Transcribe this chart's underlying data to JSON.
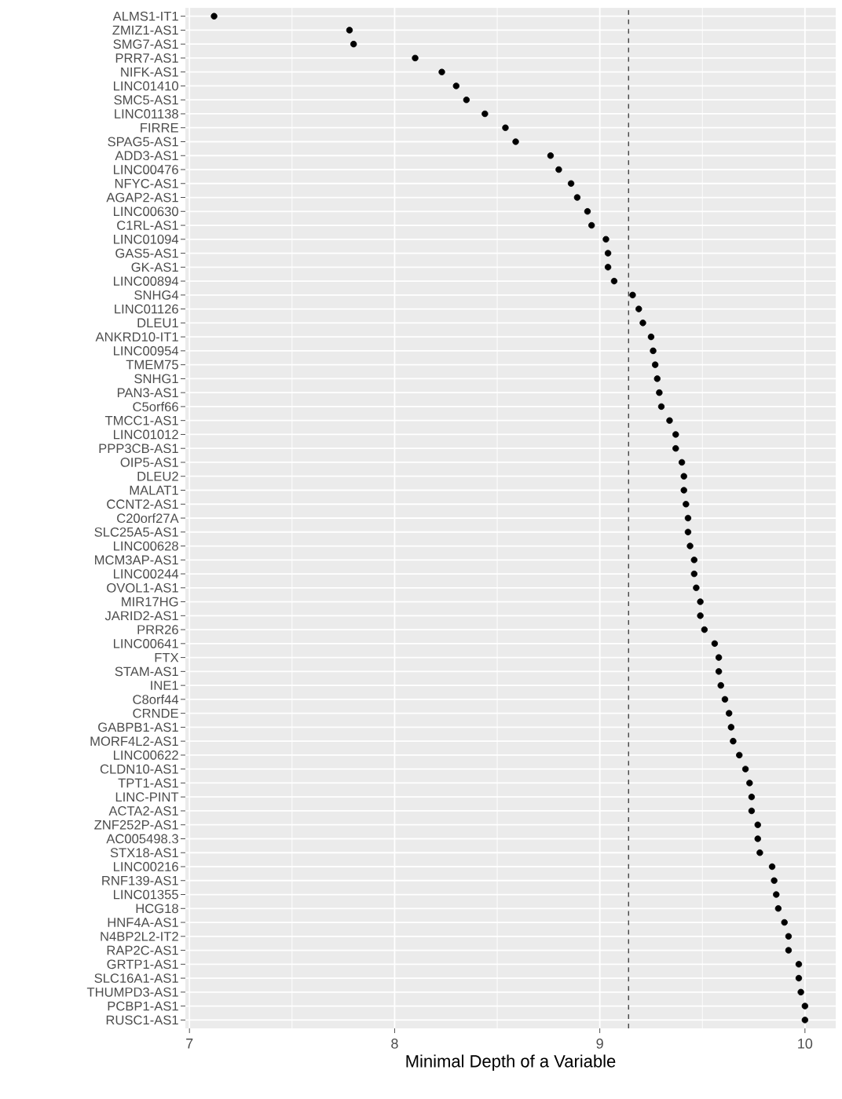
{
  "chart_data": {
    "type": "scatter",
    "orientation": "horizontal",
    "xlabel": "Minimal Depth of a Variable",
    "categories": [
      "ALMS1-IT1",
      "ZMIZ1-AS1",
      "SMG7-AS1",
      "PRR7-AS1",
      "NIFK-AS1",
      "LINC01410",
      "SMC5-AS1",
      "LINC01138",
      "FIRRE",
      "SPAG5-AS1",
      "ADD3-AS1",
      "LINC00476",
      "NFYC-AS1",
      "AGAP2-AS1",
      "LINC00630",
      "C1RL-AS1",
      "LINC01094",
      "GAS5-AS1",
      "GK-AS1",
      "LINC00894",
      "SNHG4",
      "LINC01126",
      "DLEU1",
      "ANKRD10-IT1",
      "LINC00954",
      "TMEM75",
      "SNHG1",
      "PAN3-AS1",
      "C5orf66",
      "TMCC1-AS1",
      "LINC01012",
      "PPP3CB-AS1",
      "OIP5-AS1",
      "DLEU2",
      "MALAT1",
      "CCNT2-AS1",
      "C20orf27A",
      "SLC25A5-AS1",
      "LINC00628",
      "MCM3AP-AS1",
      "LINC00244",
      "OVOL1-AS1",
      "MIR17HG",
      "JARID2-AS1",
      "PRR26",
      "LINC00641",
      "FTX",
      "STAM-AS1",
      "INE1",
      "C8orf44",
      "CRNDE",
      "GABPB1-AS1",
      "MORF4L2-AS1",
      "LINC00622",
      "CLDN10-AS1",
      "TPT1-AS1",
      "LINC-PINT",
      "ACTA2-AS1",
      "ZNF252P-AS1",
      "AC005498.3",
      "STX18-AS1",
      "LINC00216",
      "RNF139-AS1",
      "LINC01355",
      "HCG18",
      "HNF4A-AS1",
      "N4BP2L2-IT2",
      "RAP2C-AS1",
      "GRTP1-AS1",
      "SLC16A1-AS1",
      "THUMPD3-AS1",
      "PCBP1-AS1",
      "RUSC1-AS1"
    ],
    "values": [
      7.12,
      7.78,
      7.8,
      8.1,
      8.23,
      8.3,
      8.35,
      8.44,
      8.54,
      8.59,
      8.76,
      8.8,
      8.86,
      8.89,
      8.94,
      8.96,
      9.03,
      9.04,
      9.04,
      9.07,
      9.16,
      9.19,
      9.21,
      9.25,
      9.26,
      9.27,
      9.28,
      9.29,
      9.3,
      9.34,
      9.37,
      9.37,
      9.4,
      9.41,
      9.41,
      9.42,
      9.43,
      9.43,
      9.44,
      9.46,
      9.46,
      9.47,
      9.49,
      9.49,
      9.51,
      9.56,
      9.58,
      9.58,
      9.59,
      9.61,
      9.63,
      9.64,
      9.65,
      9.68,
      9.71,
      9.73,
      9.74,
      9.74,
      9.77,
      9.77,
      9.78,
      9.84,
      9.85,
      9.86,
      9.87,
      9.9,
      9.92,
      9.92,
      9.97,
      9.97,
      9.98,
      10.0,
      10.0
    ],
    "color": "#000000",
    "xlim": [
      6.98,
      10.15
    ],
    "xticks": [
      7,
      8,
      9,
      10
    ],
    "grid": true,
    "ref_lines": [
      {
        "axis": "x",
        "value": 9.14,
        "line_style": "dashed"
      }
    ]
  }
}
